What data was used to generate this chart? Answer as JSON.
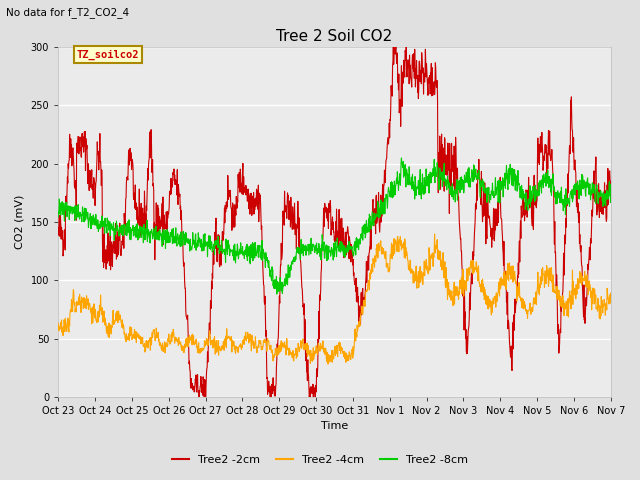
{
  "title": "Tree 2 Soil CO2",
  "subtitle": "No data for f_T2_CO2_4",
  "xlabel": "Time",
  "ylabel": "CO2 (mV)",
  "ylim": [
    0,
    300
  ],
  "tick_labels": [
    "Oct 23",
    "Oct 24",
    "Oct 25",
    "Oct 26",
    "Oct 27",
    "Oct 28",
    "Oct 29",
    "Oct 30",
    "Oct 31",
    "Nov 1",
    "Nov 2",
    "Nov 3",
    "Nov 4",
    "Nov 5",
    "Nov 6",
    "Nov 7"
  ],
  "yticks": [
    0,
    50,
    100,
    150,
    200,
    250,
    300
  ],
  "legend_label_box": "TZ_soilco2",
  "legend_box_facecolor": "#ffffcc",
  "legend_box_edgecolor": "#aa8800",
  "legend_box_textcolor": "#cc0000",
  "bg_color": "#e0e0e0",
  "plot_bg_color": "#ebebeb",
  "line_colors": [
    "#cc0000",
    "#ffa500",
    "#00cc00"
  ],
  "line_labels": [
    "Tree2 -2cm",
    "Tree2 -4cm",
    "Tree2 -8cm"
  ],
  "line_width": 0.8,
  "grid_color": "#ffffff",
  "title_fontsize": 11,
  "axis_label_fontsize": 8,
  "tick_fontsize": 7
}
